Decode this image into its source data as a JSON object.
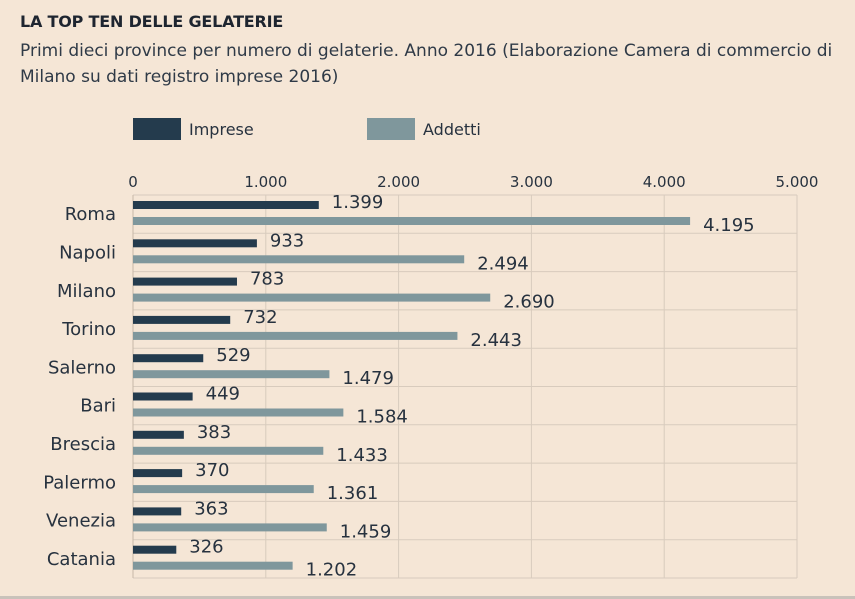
{
  "title": "LA TOP TEN DELLE GELATERIE",
  "subtitle": "Primi dieci province per numero di gelaterie. Anno 2016 (Elaborazione Camera di commercio di Milano su dati registro imprese 2016)",
  "colors": {
    "imprese": "#243b4d",
    "addetti": "#7f979c",
    "background": "#f5e6d6",
    "grid": "#d8cbbd"
  },
  "chart_data": {
    "type": "bar",
    "orientation": "horizontal",
    "categories": [
      "Roma",
      "Napoli",
      "Milano",
      "Torino",
      "Salerno",
      "Bari",
      "Brescia",
      "Palermo",
      "Venezia",
      "Catania"
    ],
    "series": [
      {
        "name": "Imprese",
        "values": [
          1399,
          933,
          783,
          732,
          529,
          449,
          383,
          370,
          363,
          326
        ],
        "labels": [
          "1.399",
          "933",
          "783",
          "732",
          "529",
          "449",
          "383",
          "370",
          "363",
          "326"
        ]
      },
      {
        "name": "Addetti",
        "values": [
          4195,
          2494,
          2690,
          2443,
          1479,
          1584,
          1433,
          1361,
          1459,
          1202
        ],
        "labels": [
          "4.195",
          "2.494",
          "2.690",
          "2.443",
          "1.479",
          "1.584",
          "1.433",
          "1.361",
          "1.459",
          "1.202"
        ]
      }
    ],
    "xlim": [
      0,
      5000
    ],
    "xticks": [
      0,
      1000,
      2000,
      3000,
      4000,
      5000
    ],
    "xtick_labels": [
      "0",
      "1.000",
      "2.000",
      "3.000",
      "4.000",
      "5.000"
    ],
    "xaxis_position": "top",
    "grid": true,
    "legend_position": "top-left"
  }
}
